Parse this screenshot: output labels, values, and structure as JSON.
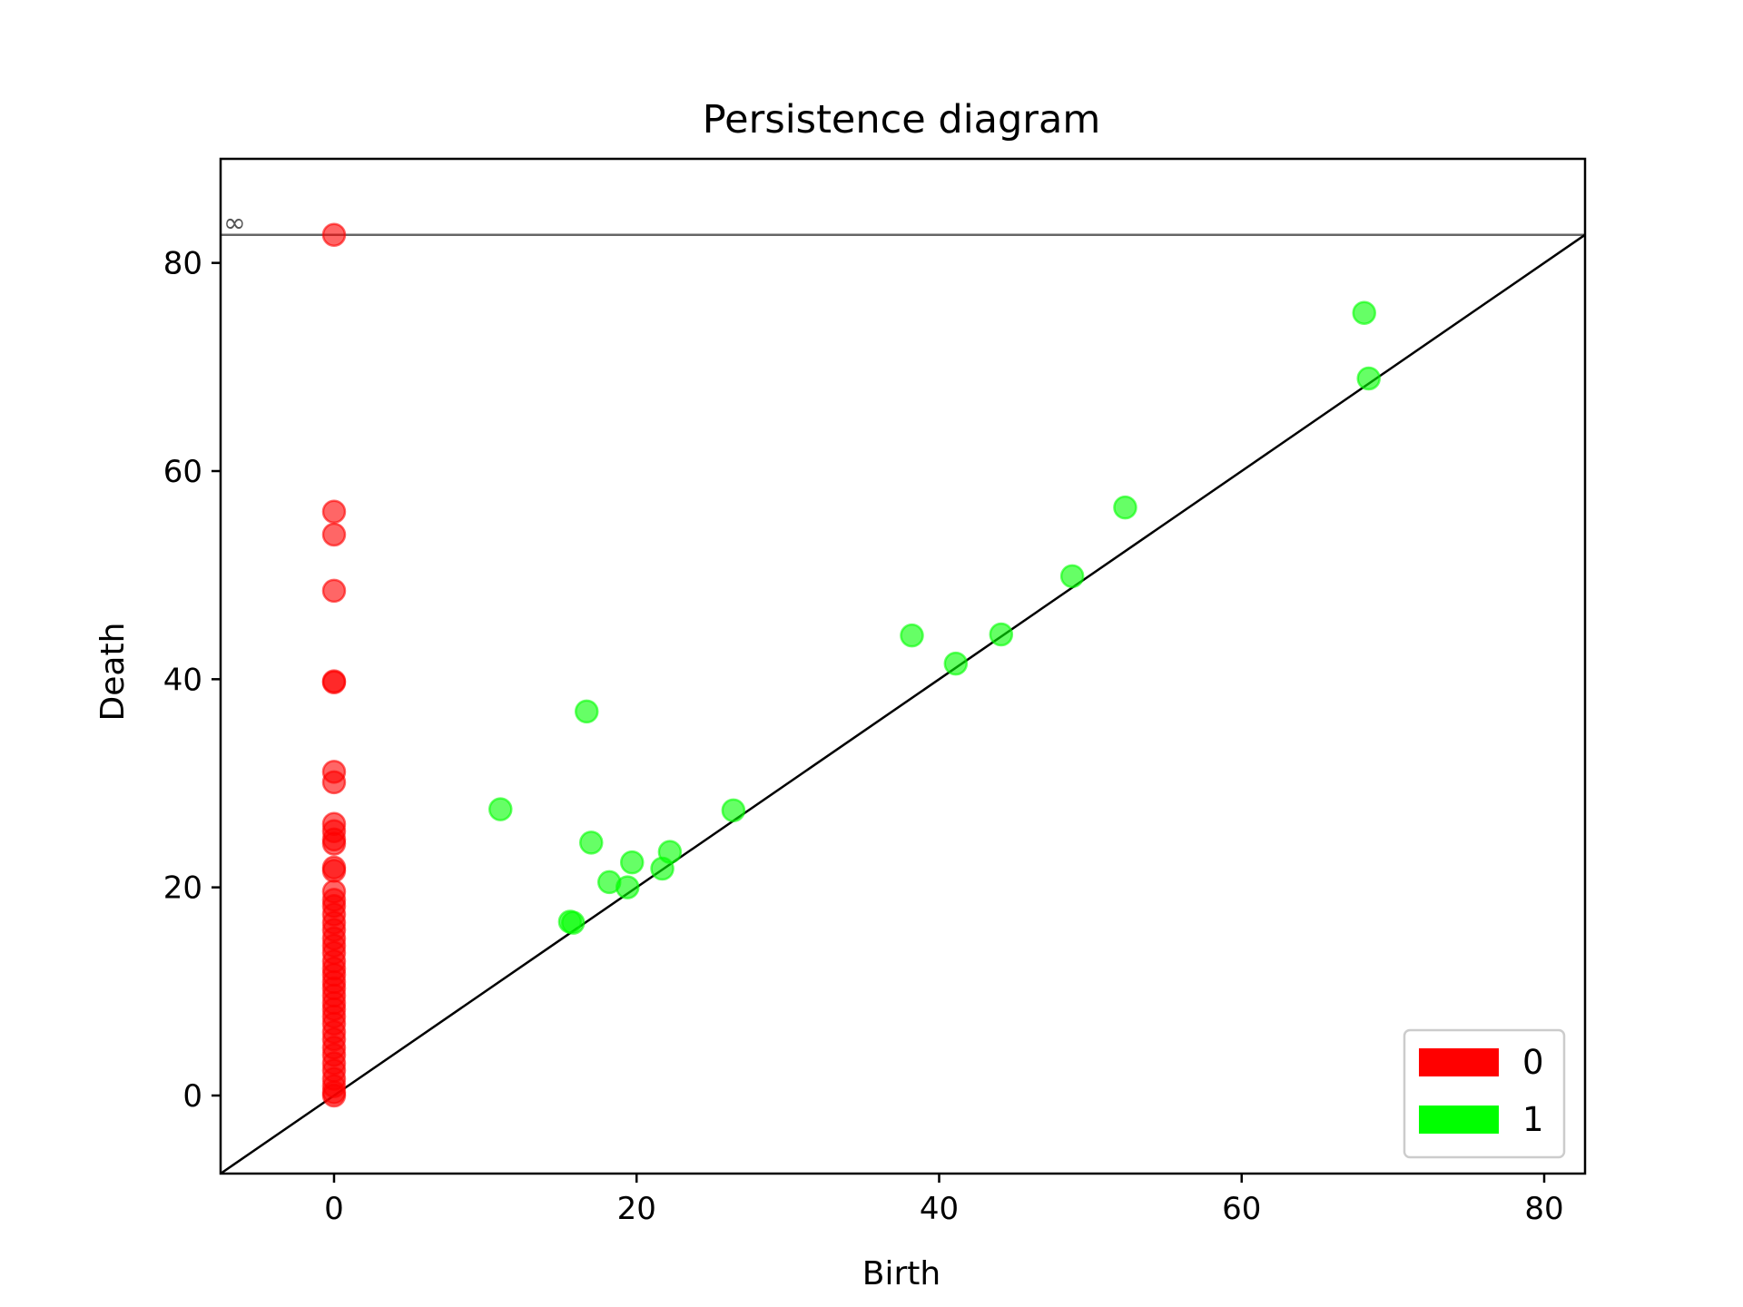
{
  "chart_data": {
    "type": "scatter",
    "title": "Persistence diagram",
    "xlabel": "Birth",
    "ylabel": "Death",
    "xlim": [
      -7.5,
      82.7
    ],
    "ylim": [
      -7.5,
      90
    ],
    "xticks": [
      0,
      20,
      40,
      60,
      80
    ],
    "yticks": [
      0,
      20,
      40,
      60,
      80
    ],
    "infinity_level": 82.7,
    "infinity_symbol": "∞",
    "diagonal": true,
    "grid": false,
    "legend_position": "lower-right",
    "series": [
      {
        "name": "0",
        "color": "#ff0000",
        "points": [
          [
            0,
            82.7
          ],
          [
            0,
            56.1
          ],
          [
            0,
            53.9
          ],
          [
            0,
            48.5
          ],
          [
            0,
            39.8
          ],
          [
            0,
            39.7
          ],
          [
            0,
            31.1
          ],
          [
            0,
            30.1
          ],
          [
            0,
            26.1
          ],
          [
            0,
            25.4
          ],
          [
            0,
            24.6
          ],
          [
            0,
            24.2
          ],
          [
            0,
            21.9
          ],
          [
            0,
            21.6
          ],
          [
            0,
            19.6
          ],
          [
            0,
            18.8
          ],
          [
            0,
            18.2
          ],
          [
            0,
            17.4
          ],
          [
            0,
            16.6
          ],
          [
            0,
            15.9
          ],
          [
            0,
            15.1
          ],
          [
            0,
            14.4
          ],
          [
            0,
            13.7
          ],
          [
            0,
            12.9
          ],
          [
            0,
            12.2
          ],
          [
            0,
            11.6
          ],
          [
            0,
            10.9
          ],
          [
            0,
            10.3
          ],
          [
            0,
            9.6
          ],
          [
            0,
            8.9
          ],
          [
            0,
            8.3
          ],
          [
            0,
            7.6
          ],
          [
            0,
            6.9
          ],
          [
            0,
            6.1
          ],
          [
            0,
            5.4
          ],
          [
            0,
            4.6
          ],
          [
            0,
            3.9
          ],
          [
            0,
            3.1
          ],
          [
            0,
            2.4
          ],
          [
            0,
            1.6
          ],
          [
            0,
            0.9
          ],
          [
            0,
            0.3
          ],
          [
            0,
            0.0
          ]
        ]
      },
      {
        "name": "1",
        "color": "#00ff00",
        "points": [
          [
            11.0,
            27.5
          ],
          [
            15.6,
            16.7
          ],
          [
            15.8,
            16.6
          ],
          [
            16.7,
            36.9
          ],
          [
            17.0,
            24.3
          ],
          [
            18.2,
            20.5
          ],
          [
            19.4,
            20.0
          ],
          [
            19.7,
            22.4
          ],
          [
            21.7,
            21.8
          ],
          [
            22.2,
            23.4
          ],
          [
            26.4,
            27.4
          ],
          [
            38.2,
            44.2
          ],
          [
            41.1,
            41.5
          ],
          [
            44.1,
            44.3
          ],
          [
            48.8,
            49.9
          ],
          [
            52.3,
            56.5
          ],
          [
            68.1,
            75.2
          ],
          [
            68.4,
            68.9
          ]
        ]
      }
    ]
  }
}
